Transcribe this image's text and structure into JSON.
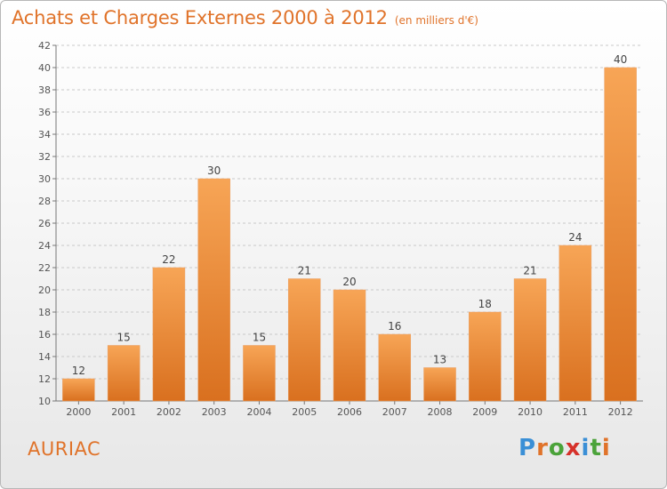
{
  "header": {
    "title": "Achats et Charges Externes 2000 à 2012",
    "subtitle": "(en milliers d'€)"
  },
  "footer": {
    "place": "AURIAC",
    "brand": "Proxiti",
    "brand_colors": [
      "#3a8fd6",
      "#e0732a",
      "#4ba33a",
      "#d6312a",
      "#3a8fd6",
      "#4ba33a",
      "#e0732a"
    ]
  },
  "colors": {
    "bar_top": "#f7a556",
    "bar_bottom": "#d9701f",
    "title": "#e0732a",
    "grid": "#c9c9c9"
  },
  "chart_data": {
    "type": "bar",
    "title": "Achats et Charges Externes 2000 à 2012",
    "subtitle": "(en milliers d'€)",
    "categories": [
      "2000",
      "2001",
      "2002",
      "2003",
      "2004",
      "2005",
      "2006",
      "2007",
      "2008",
      "2009",
      "2010",
      "2011",
      "2012"
    ],
    "values": [
      12,
      15,
      22,
      30,
      15,
      21,
      20,
      16,
      13,
      18,
      21,
      24,
      40
    ],
    "ylim": [
      10,
      42
    ],
    "yticks": [
      10,
      12,
      14,
      16,
      18,
      20,
      22,
      24,
      26,
      28,
      30,
      32,
      34,
      36,
      38,
      40,
      42
    ],
    "grid": true,
    "legend": "none"
  }
}
